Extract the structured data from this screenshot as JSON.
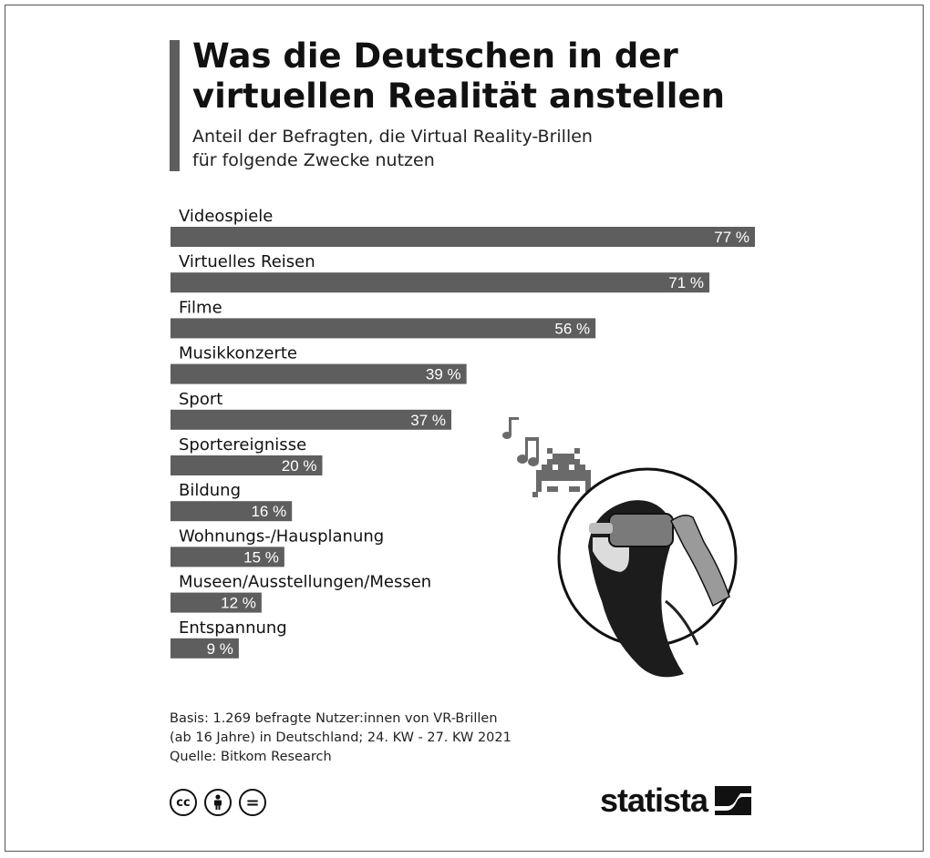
{
  "header": {
    "title_line1": "Was die Deutschen in der",
    "title_line2": "virtuellen Realität anstellen",
    "subtitle_line1": "Anteil der Befragten, die Virtual Reality-Brillen",
    "subtitle_line2": "für folgende Zwecke nutzen"
  },
  "chart_data": {
    "type": "bar",
    "orientation": "horizontal",
    "title": "Was die Deutschen in der virtuellen Realität anstellen",
    "subtitle": "Anteil der Befragten, die Virtual Reality-Brillen für folgende Zwecke nutzen",
    "categories": [
      "Videospiele",
      "Virtuelles Reisen",
      "Filme",
      "Musikkonzerte",
      "Sport",
      "Sportereignisse",
      "Bildung",
      "Wohnungs-/Hausplanung",
      "Museen/Ausstellungen/Messen",
      "Entspannung"
    ],
    "values": [
      77,
      71,
      56,
      39,
      37,
      20,
      16,
      15,
      12,
      9
    ],
    "value_labels": [
      "77 %",
      "71 %",
      "56 %",
      "39 %",
      "37 %",
      "20 %",
      "16 %",
      "15 %",
      "12 %",
      "9 %"
    ],
    "unit": "%",
    "xlim": [
      0,
      77
    ],
    "bar_color": "#5e5e5e",
    "grid": false,
    "legend": "none"
  },
  "footer": {
    "basis_line1": "Basis: 1.269 befragte Nutzer:innen von VR-Brillen",
    "basis_line2": "(ab 16 Jahre) in Deutschland; 24. KW - 27. KW 2021",
    "source": "Quelle: Bitkom Research",
    "license_icons": [
      "cc-icon",
      "by-person-icon",
      "nd-equals-icon"
    ],
    "license_glyphs": [
      "cc",
      "=",
      "="
    ],
    "brand": "statista"
  },
  "illustration": {
    "icons": [
      "music-note-icon",
      "space-invader-icon",
      "vr-headset-woman-icon"
    ]
  }
}
